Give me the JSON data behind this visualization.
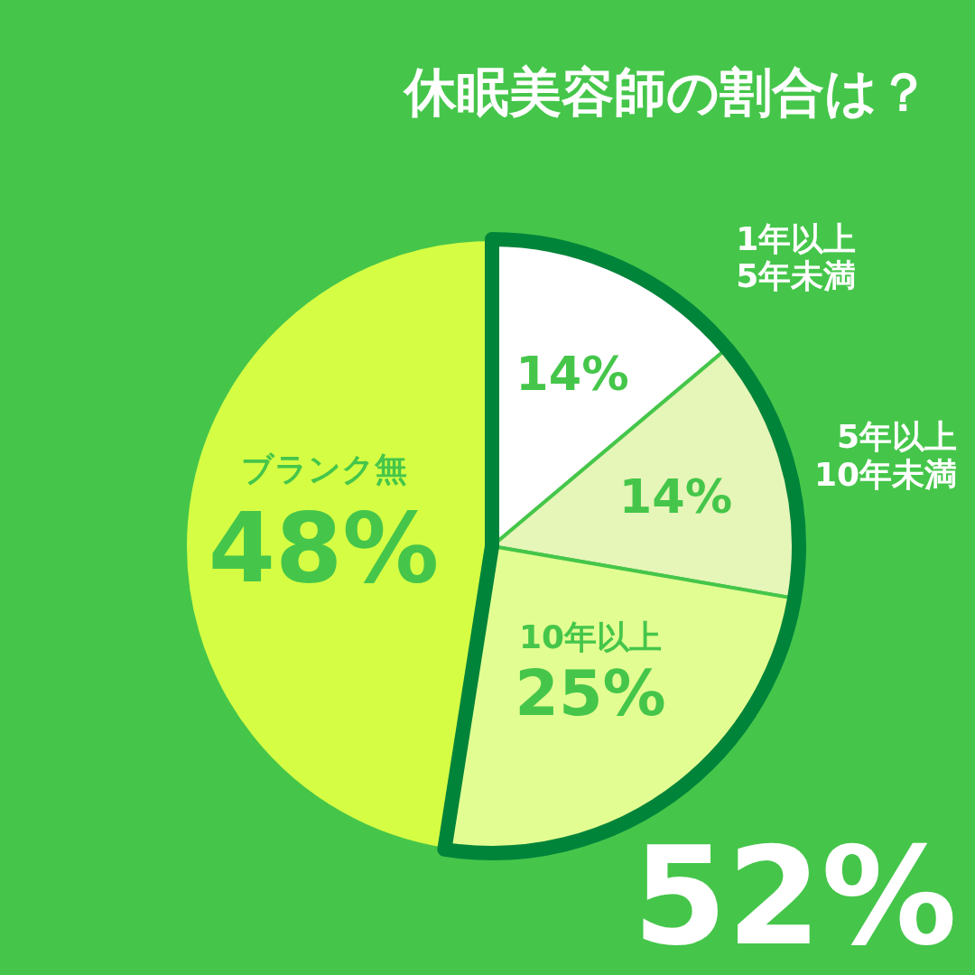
{
  "chart_data": {
    "type": "pie",
    "title": "休眠美容師の割合は？",
    "categories": [
      "1年以上\n5年未満",
      "5年以上\n10年未満",
      "10年以上",
      "ブランク無"
    ],
    "values": [
      14,
      14,
      25,
      48
    ],
    "colors": [
      "#ffffff",
      "#e6f5b8",
      "#e2fd92",
      "#d4fd44"
    ],
    "value_labels": [
      "14%",
      "14%",
      "25%",
      "48%"
    ],
    "annotations": [
      "52%"
    ]
  }
}
